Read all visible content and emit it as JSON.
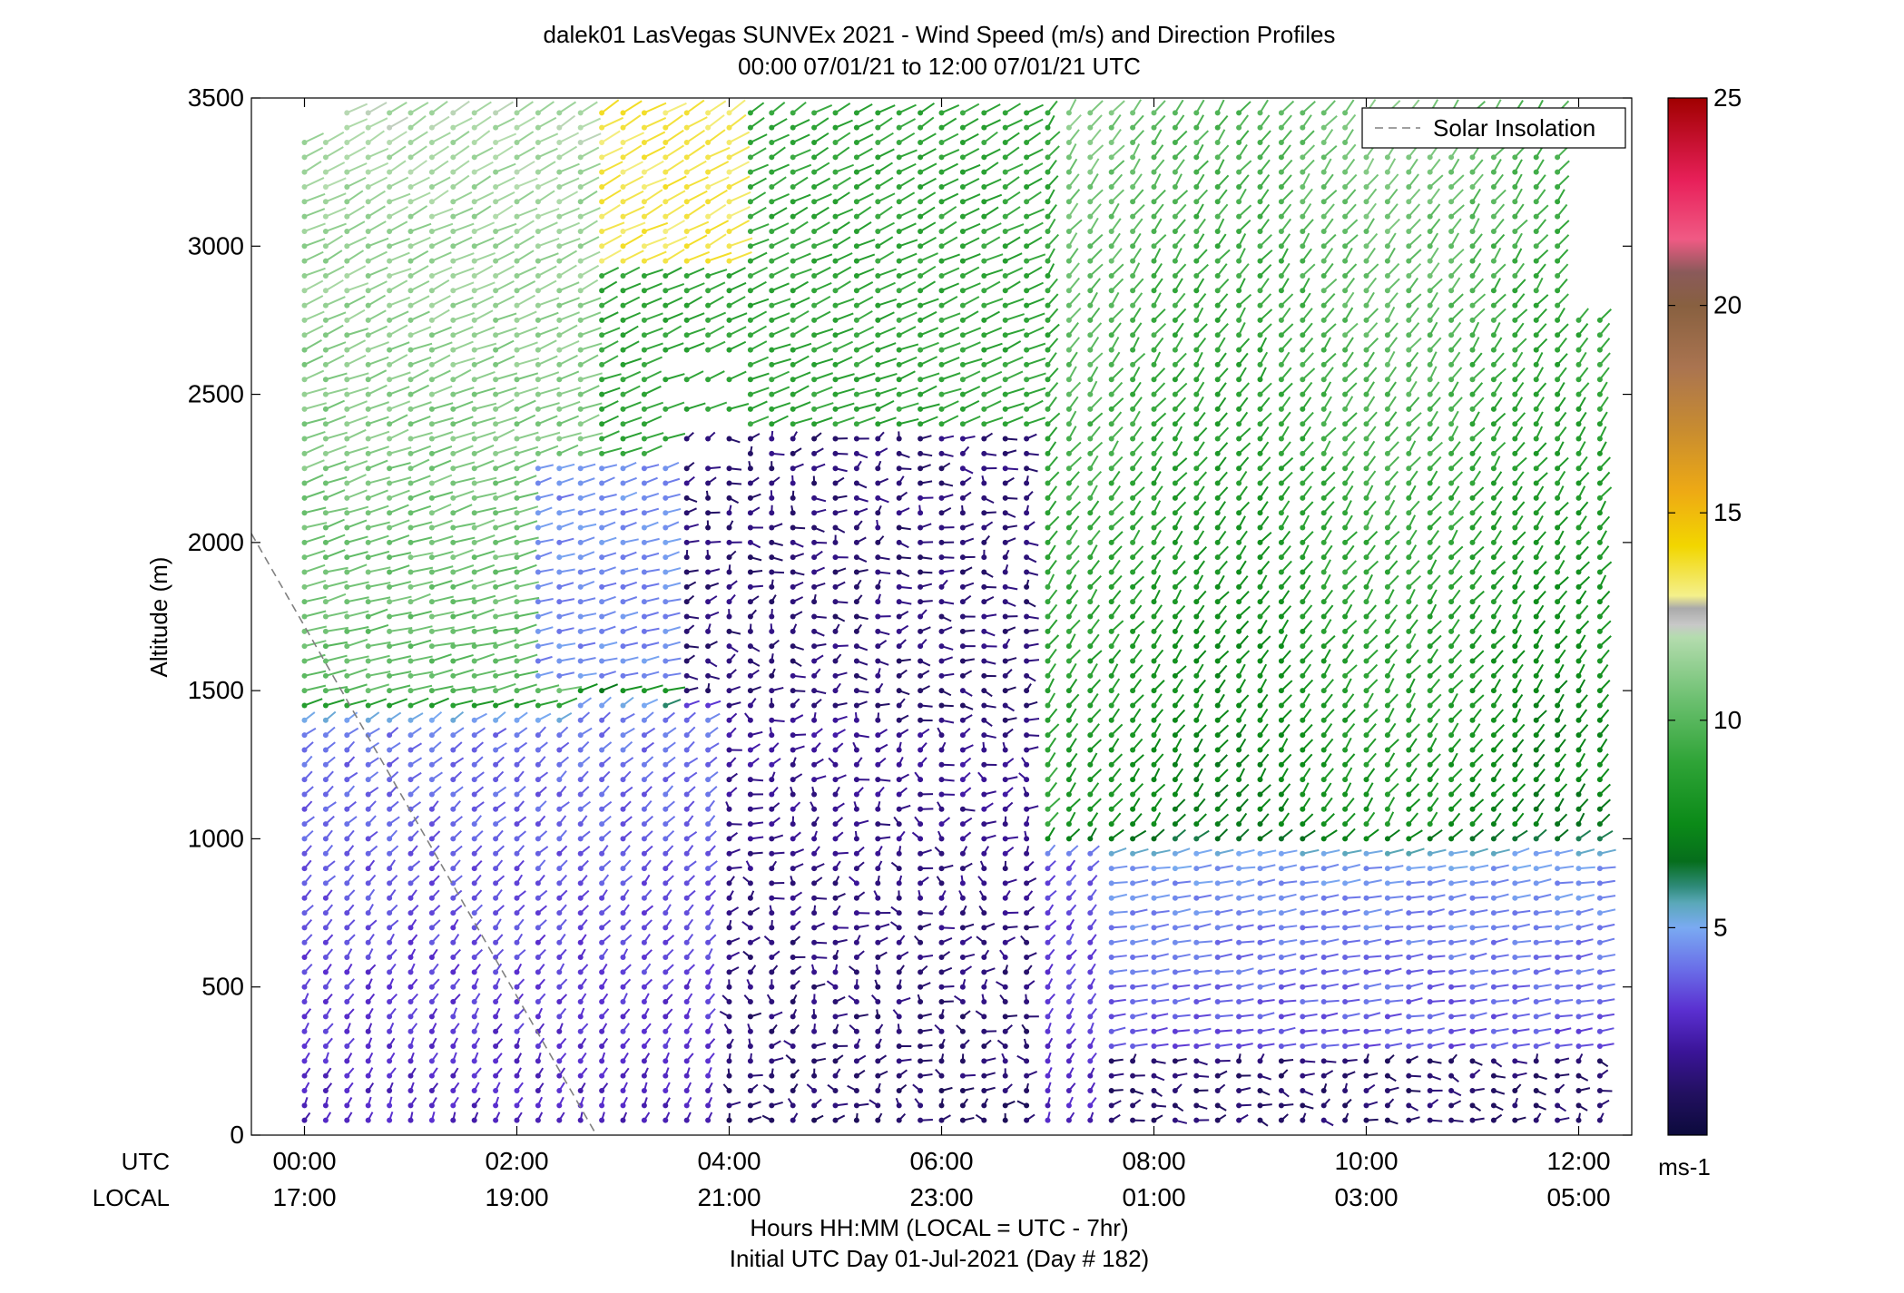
{
  "chart_data": {
    "type": "wind_barb_profile",
    "title": "dalek01 LasVegas SUNVEx 2021 - Wind Speed (m/s) and Direction Profiles",
    "subtitle": "00:00 07/01/21 to 12:00 07/01/21  UTC",
    "xlabel": "Hours HH:MM  (LOCAL = UTC - 7hr)",
    "xlabel2": "Initial UTC Day 01-Jul-2021 (Day # 182)",
    "ylabel": "Altitude (m)",
    "xlim_hours": [
      -0.5,
      12.5
    ],
    "ylim": [
      0,
      3500
    ],
    "y_ticks": [
      0,
      500,
      1000,
      1500,
      2000,
      2500,
      3000,
      3500
    ],
    "x_tick_hours": [
      0,
      2,
      4,
      6,
      8,
      10,
      12
    ],
    "x_row_labels": {
      "utc": "UTC",
      "local": "LOCAL"
    },
    "x_utc_labels": [
      "00:00",
      "02:00",
      "04:00",
      "06:00",
      "08:00",
      "10:00",
      "12:00"
    ],
    "x_local_labels": [
      "17:00",
      "19:00",
      "21:00",
      "23:00",
      "01:00",
      "03:00",
      "05:00"
    ],
    "legend": {
      "label": "Solar Insolation",
      "location": "top-right",
      "line_color": "#808080",
      "line_style": "dashed"
    },
    "solar_insolation_line": {
      "x_hours": [
        -0.5,
        2.75
      ],
      "y": [
        2030,
        0
      ]
    },
    "colorbar": {
      "label": "ms-1",
      "range": [
        0,
        25
      ],
      "ticks": [
        5,
        10,
        15,
        20,
        25
      ],
      "colors": [
        {
          "v": 0,
          "c": "#0c0a3c"
        },
        {
          "v": 1,
          "c": "#221060"
        },
        {
          "v": 2,
          "c": "#3a1497"
        },
        {
          "v": 3,
          "c": "#5a2fd0"
        },
        {
          "v": 4,
          "c": "#6a6ee8"
        },
        {
          "v": 5,
          "c": "#7aaaf2"
        },
        {
          "v": 5.6,
          "c": "#5aa8b8"
        },
        {
          "v": 6,
          "c": "#2e8a78"
        },
        {
          "v": 6.6,
          "c": "#066e1c"
        },
        {
          "v": 7.5,
          "c": "#0b8a18"
        },
        {
          "v": 9,
          "c": "#2fa437"
        },
        {
          "v": 10.5,
          "c": "#6cc070"
        },
        {
          "v": 12,
          "c": "#b4dcae"
        },
        {
          "v": 12.3,
          "c": "#c8c8c8"
        },
        {
          "v": 12.7,
          "c": "#aaaaaa"
        },
        {
          "v": 13,
          "c": "#f4f08c"
        },
        {
          "v": 14.2,
          "c": "#f2d600"
        },
        {
          "v": 15.5,
          "c": "#eeaa14"
        },
        {
          "v": 17,
          "c": "#c88c30"
        },
        {
          "v": 18.5,
          "c": "#aa7450"
        },
        {
          "v": 20,
          "c": "#886040"
        },
        {
          "v": 20.8,
          "c": "#8a5a5a"
        },
        {
          "v": 21.6,
          "c": "#f05a84"
        },
        {
          "v": 23,
          "c": "#e8205a"
        },
        {
          "v": 25,
          "c": "#a00000"
        }
      ]
    },
    "wind_field": {
      "time_start_hours": 0,
      "time_end_hours": 12.1,
      "time_step_minutes": 12,
      "alt_step_m": 50,
      "max_alt_m": 3350,
      "upper_layer_alt_m": 1500,
      "regimes": [
        {
          "region": "0-2 UTC near surface (<1400 m)",
          "speed_ms": 3,
          "dir_deg": 200
        },
        {
          "region": "0-3 UTC upper (1500-3300 m)",
          "speed_ms": 10.5,
          "dir_deg": 240
        },
        {
          "region": "2.5-4 UTC 2800-3500 m jet",
          "speed_ms": 13,
          "dir_deg": 245
        },
        {
          "region": "4-7 UTC mid layer (700-2400 m) light/variable",
          "speed_ms": 1.5,
          "dir_deg": 180
        },
        {
          "region": "7-12 UTC upper (>1000 m)",
          "speed_ms": 8.5,
          "dir_deg": 210
        },
        {
          "region": "8-12 UTC low level (<1000 m)",
          "speed_ms": 4,
          "dir_deg": 250
        },
        {
          "region": "9-12 UTC surface (<300 m)",
          "speed_ms": 2,
          "dir_deg": 270
        }
      ]
    }
  }
}
